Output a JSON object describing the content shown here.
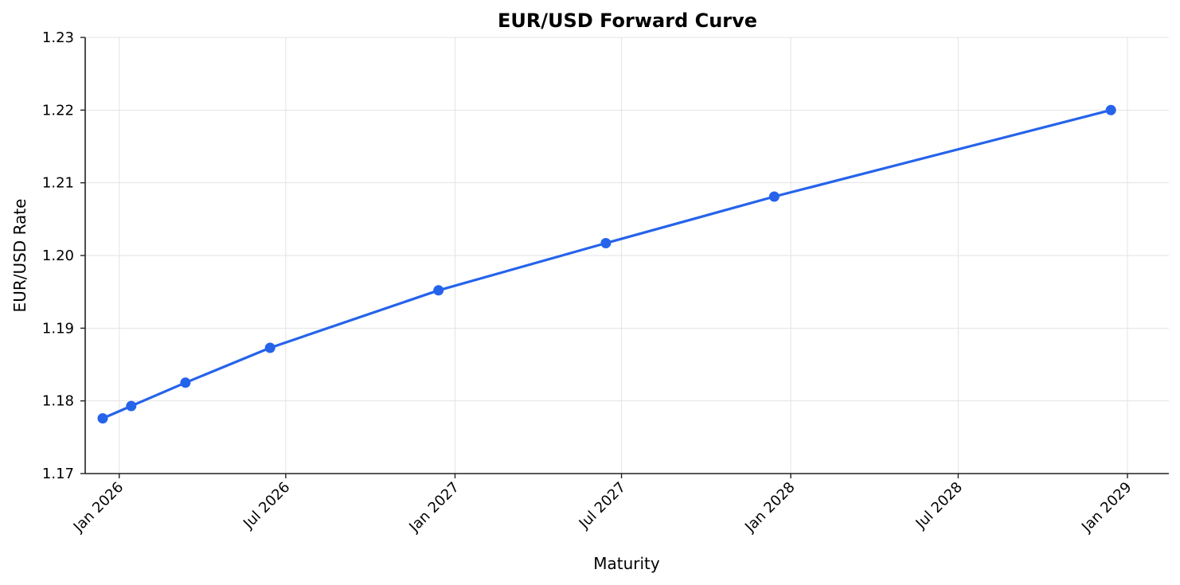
{
  "chart_data": {
    "type": "line",
    "title": "EUR/USD Forward Curve",
    "xlabel": "Maturity",
    "ylabel": "EUR/USD Rate",
    "ylim": [
      1.17,
      1.23
    ],
    "xlim": [
      "2025-11-25",
      "2029-02-15"
    ],
    "yticks": [
      "1.17",
      "1.18",
      "1.19",
      "1.20",
      "1.21",
      "1.22",
      "1.23"
    ],
    "xticks": [
      "Jan 2026",
      "Jul 2026",
      "Jan 2027",
      "Jul 2027",
      "Jan 2028",
      "Jul 2028",
      "Jan 2029"
    ],
    "xtick_dates": [
      "2026-01-01",
      "2026-07-01",
      "2027-01-01",
      "2027-07-01",
      "2028-01-01",
      "2028-07-01",
      "2029-01-01"
    ],
    "grid": true,
    "legend": null,
    "series": [
      {
        "name": "EUR/USD Forward",
        "color": "#2563eb",
        "marker": "circle",
        "x": [
          "2025-12-14",
          "2026-01-14",
          "2026-03-14",
          "2026-06-14",
          "2026-12-14",
          "2027-06-14",
          "2027-12-14",
          "2028-12-14"
        ],
        "values": [
          1.1776,
          1.1793,
          1.1825,
          1.1873,
          1.1952,
          1.2017,
          1.2081,
          1.22
        ]
      }
    ]
  },
  "colors": {
    "line": "#2563eb",
    "grid": "#e3e3e3",
    "axis": "#222222"
  }
}
